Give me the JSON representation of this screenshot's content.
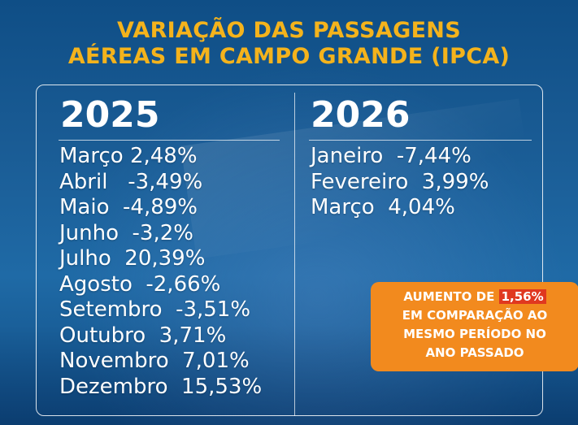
{
  "title": {
    "line1": "VARIAÇÃO DAS PASSAGENS",
    "line2": "AÉREAS EM CAMPO GRANDE (IPCA)"
  },
  "col_2025": {
    "year": "2025",
    "items": [
      "Março 2,48%",
      "Abril   -3,49%",
      "Maio  -4,89%",
      "Junho  -3,2%",
      "Julho  20,39%",
      "Agosto  -2,66%",
      "Setembro  -3,51%",
      "Outubro  3,71%",
      "Novembro  7,01%",
      "Dezembro  15,53%"
    ]
  },
  "col_2026": {
    "year": "2026",
    "items": [
      "Janeiro  -7,44%",
      "Fevereiro  3,99%",
      "Março  4,04%"
    ]
  },
  "callout": {
    "prefix": "AUMENTO DE ",
    "highlight": "1,56%",
    "line2": "EM COMPARAÇÃO AO",
    "line3": "MESMO PERÍODO NO",
    "line4": "ANO PASSADO"
  },
  "colors": {
    "title": "#f4b31c",
    "callout_bg": "#f28a1e",
    "highlight_bg": "#e0381f",
    "background": "#1a5c95"
  }
}
